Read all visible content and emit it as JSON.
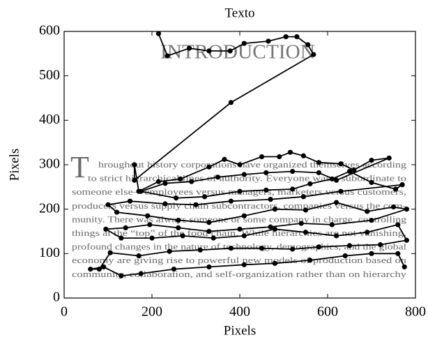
{
  "chart_data": {
    "type": "line",
    "title": "Texto",
    "xlabel": "Pixels",
    "ylabel": "Pixels",
    "xlim": [
      0,
      800
    ],
    "ylim": [
      0,
      600
    ],
    "xticks": [
      0,
      200,
      400,
      600,
      800
    ],
    "yticks": [
      0,
      100,
      200,
      300,
      400,
      500,
      600
    ],
    "color": "#000000",
    "markers": true,
    "image_text": {
      "heading": "INTRODUCTION",
      "drop_cap": "T",
      "lines": [
        "hroughout history corporations have organized themselves according",
        "to strict hierarchical lines of authority. Everyone was a subordinate to",
        "someone else—employees versus managers, marketers versus customers,",
        "producers versus supply chain subcontractors, companies versus the com-",
        "munity. There was always someone or some company in charge, controlling",
        "things at the “top” of the food chain. While hierarchies are not vanishing,",
        "profound changes in the nature of technology, demographics, and the global",
        "economy are giving rise to powerful new models of production based on",
        "community, collaboration, and self-organization rather than on hierarchy"
      ]
    },
    "x": [
      215,
      235,
      285,
      330,
      378,
      410,
      465,
      505,
      530,
      555,
      568,
      380,
      160,
      160,
      170,
      215,
      265,
      330,
      365,
      400,
      450,
      490,
      515,
      545,
      580,
      630,
      660,
      700,
      740,
      620,
      580,
      520,
      460,
      410,
      350,
      290,
      230,
      175,
      255,
      320,
      400,
      460,
      520,
      560,
      610,
      650,
      700,
      755,
      770,
      630,
      545,
      470,
      380,
      300,
      230,
      150,
      100,
      120,
      190,
      260,
      330,
      410,
      480,
      550,
      620,
      690,
      750,
      780,
      700,
      610,
      540,
      470,
      400,
      330,
      260,
      195,
      140,
      95,
      130,
      200,
      270,
      340,
      410,
      480,
      550,
      620,
      690,
      760,
      780,
      720,
      650,
      580,
      520,
      450,
      380,
      310,
      240,
      170,
      105,
      80,
      60,
      90,
      130,
      175,
      250,
      330,
      410,
      480,
      560,
      640,
      700,
      760,
      775
    ],
    "values": [
      595,
      545,
      562,
      556,
      556,
      573,
      578,
      588,
      588,
      570,
      548,
      440,
      265,
      300,
      240,
      262,
      268,
      295,
      312,
      300,
      318,
      318,
      328,
      320,
      305,
      302,
      288,
      310,
      315,
      265,
      282,
      285,
      282,
      278,
      272,
      262,
      258,
      240,
      225,
      228,
      240,
      243,
      245,
      257,
      268,
      285,
      260,
      245,
      255,
      240,
      228,
      222,
      218,
      210,
      212,
      218,
      210,
      193,
      185,
      175,
      170,
      185,
      200,
      198,
      215,
      195,
      205,
      200,
      175,
      165,
      168,
      160,
      155,
      150,
      158,
      165,
      158,
      155,
      135,
      135,
      140,
      135,
      140,
      155,
      148,
      140,
      148,
      165,
      130,
      120,
      118,
      115,
      110,
      112,
      112,
      108,
      105,
      95,
      102,
      65,
      65,
      70,
      50,
      55,
      65,
      70,
      75,
      78,
      85,
      95,
      100,
      100,
      70
    ]
  }
}
